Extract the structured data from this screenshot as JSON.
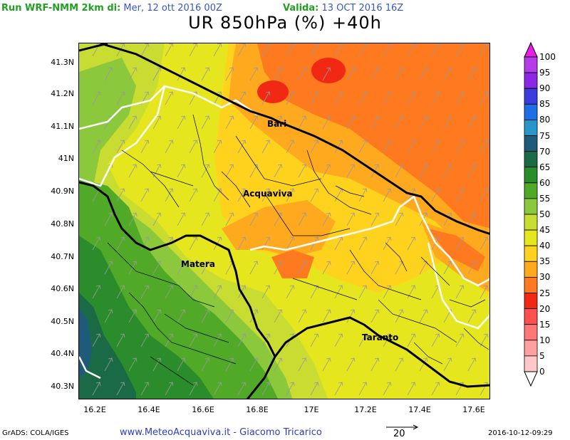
{
  "header": {
    "run_label": "Run WRF-NMM 2km di:",
    "run_date": "Mer, 12 ott 2016 00Z",
    "valid_label": "Valida:",
    "valid_date": "13 OCT 2016 16Z"
  },
  "title": "UR 850hPa (%) +40h",
  "colors": {
    "run_label": "#22a022",
    "run_date": "#3b56c4",
    "valid_label": "#22a022",
    "valid_date": "#3b56c4"
  },
  "map": {
    "y_ticks": [
      "41.3N",
      "41.2N",
      "41.1N",
      "41N",
      "40.9N",
      "40.8N",
      "40.7N",
      "40.6N",
      "40.5N",
      "40.4N",
      "40.3N"
    ],
    "x_ticks": [
      "16.2E",
      "16.4E",
      "16.6E",
      "16.8E",
      "17E",
      "17.2E",
      "17.4E",
      "17.6E"
    ],
    "cities": [
      "Bari",
      "Acquaviva",
      "Matera",
      "Taranto"
    ]
  },
  "colorbar": {
    "labels": [
      "100",
      "95",
      "90",
      "85",
      "80",
      "75",
      "70",
      "65",
      "60",
      "55",
      "50",
      "45",
      "40",
      "35",
      "30",
      "25",
      "20",
      "15",
      "10",
      "5",
      "0"
    ],
    "colors": [
      "#e61ee6",
      "#b43ce6",
      "#8a28e6",
      "#3c3cdc",
      "#1e6ee6",
      "#2896c8",
      "#1e5a7a",
      "#1a6a46",
      "#2a8c2a",
      "#50aa28",
      "#8cc83c",
      "#c8dc32",
      "#e6e61e",
      "#ffd21e",
      "#ffaa1e",
      "#ff7a1e",
      "#f02814",
      "#ff5050",
      "#ff7878",
      "#ffa0a0",
      "#ffc8c8",
      "#ffffff"
    ]
  },
  "footer": {
    "left": "GrADS: COLA/IGES",
    "site": "www.MeteoAcquaviva.it  -  Giacomo Tricarico",
    "vector_scale": "20",
    "timestamp": "2016-10-12-09:29"
  }
}
